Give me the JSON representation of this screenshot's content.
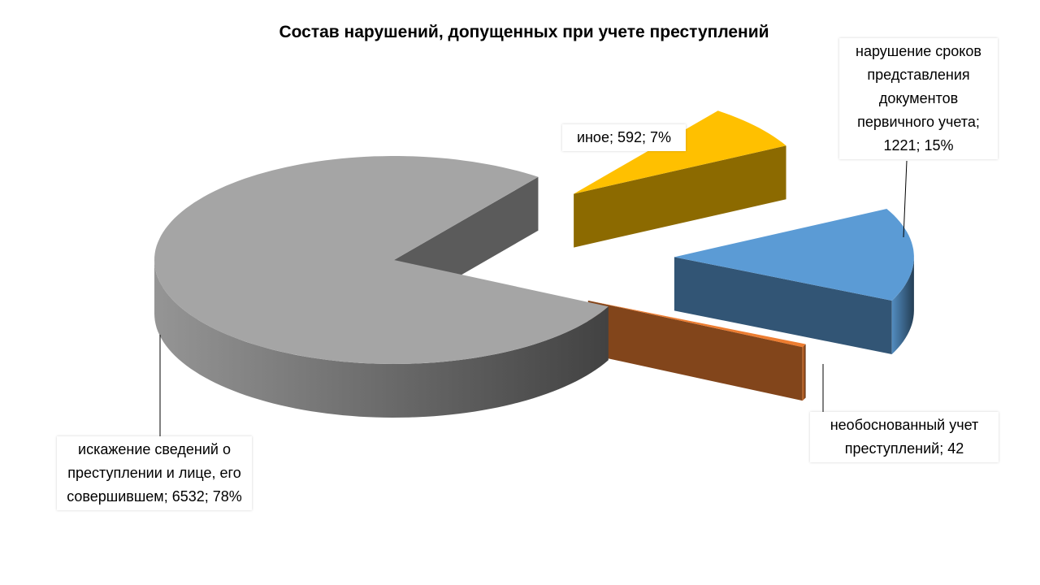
{
  "chart_data": {
    "type": "pie3d",
    "title": "Состав нарушений, допущенных при учете преступлений",
    "categories": [
      "искажение сведений о преступлении и лице, его совершившем",
      "иное",
      "нарушение сроков представления документов первичного учета",
      "необоснованный учет преступлений"
    ],
    "values": [
      6532,
      592,
      1221,
      42
    ],
    "percent_labels": [
      "78%",
      "7%",
      "15%",
      null
    ],
    "label_separator": "; ",
    "colors": [
      "#a5a5a5",
      "#ffc000",
      "#5b9bd5",
      "#ed7d31"
    ]
  }
}
